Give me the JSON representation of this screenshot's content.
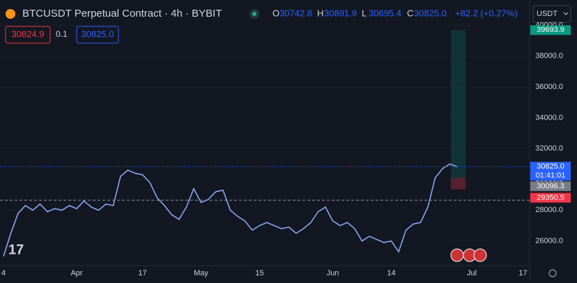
{
  "header": {
    "symbol": "BTCUSDT Perpetual Contract · 4h · BYBIT",
    "ohlc": [
      {
        "k": "O",
        "v": "30742.8"
      },
      {
        "k": "H",
        "v": "30891.9"
      },
      {
        "k": "L",
        "v": "30695.4"
      },
      {
        "k": "C",
        "v": "30825.0"
      }
    ],
    "change": "+82.2 (+0.27%)"
  },
  "order_panel": {
    "sell": "30824.9",
    "spread": "0.1",
    "buy": "30825.0"
  },
  "currency": "USDT",
  "chart_data": {
    "type": "line",
    "color": "#8fb0ff",
    "grid": true,
    "categories": [
      "4",
      null,
      null,
      null,
      null,
      null,
      null,
      null,
      null,
      null,
      "Apr",
      null,
      null,
      null,
      null,
      null,
      null,
      null,
      null,
      "17",
      null,
      null,
      null,
      null,
      null,
      null,
      null,
      "May",
      null,
      null,
      null,
      null,
      null,
      null,
      null,
      "15",
      null,
      null,
      null,
      null,
      null,
      null,
      null,
      null,
      null,
      "Jun",
      null,
      null,
      null,
      null,
      null,
      null,
      null,
      "14",
      null,
      null,
      null,
      null,
      null,
      null,
      null,
      null,
      null,
      null,
      "Jul",
      null,
      null,
      null,
      null,
      null,
      null,
      "17",
      null,
      null,
      null,
      null
    ],
    "values": [
      25000,
      26500,
      27800,
      28300,
      28000,
      28400,
      27900,
      28100,
      28000,
      28300,
      28100,
      28600,
      28200,
      28000,
      28400,
      28300,
      30200,
      30600,
      30400,
      30300,
      29800,
      28800,
      28300,
      27700,
      27400,
      28200,
      29400,
      28500,
      28700,
      29200,
      29300,
      28000,
      27600,
      27300,
      26700,
      27000,
      27200,
      27000,
      26800,
      26900,
      26500,
      26800,
      27200,
      27900,
      28200,
      27300,
      27000,
      27200,
      26800,
      26000,
      26300,
      26100,
      25900,
      26000,
      25300,
      26700,
      27100,
      27200,
      28200,
      30100,
      30700,
      31000,
      30825,
      null,
      null,
      null,
      null,
      null,
      null,
      null,
      null,
      null,
      null,
      null,
      null,
      null
    ],
    "ylim": [
      24400,
      41650
    ],
    "yticks": [
      {
        "value": 26000,
        "label": "26000.0"
      },
      {
        "value": 28000,
        "label": "28000.0"
      },
      {
        "value": 30000,
        "label": "30000.0"
      },
      {
        "value": 32000,
        "label": "32000.0"
      },
      {
        "value": 34000,
        "label": "34000.0"
      },
      {
        "value": 36000,
        "label": "36000.0"
      },
      {
        "value": 38000,
        "label": "38000.0"
      },
      {
        "value": 40000,
        "label": "40000.0"
      }
    ],
    "position": {
      "target": 39693.9,
      "entry": 30096.3,
      "stop": 29350.5
    },
    "last_price": {
      "value": 30825,
      "label": "30825.0"
    },
    "countdown": "01:41:01"
  }
}
